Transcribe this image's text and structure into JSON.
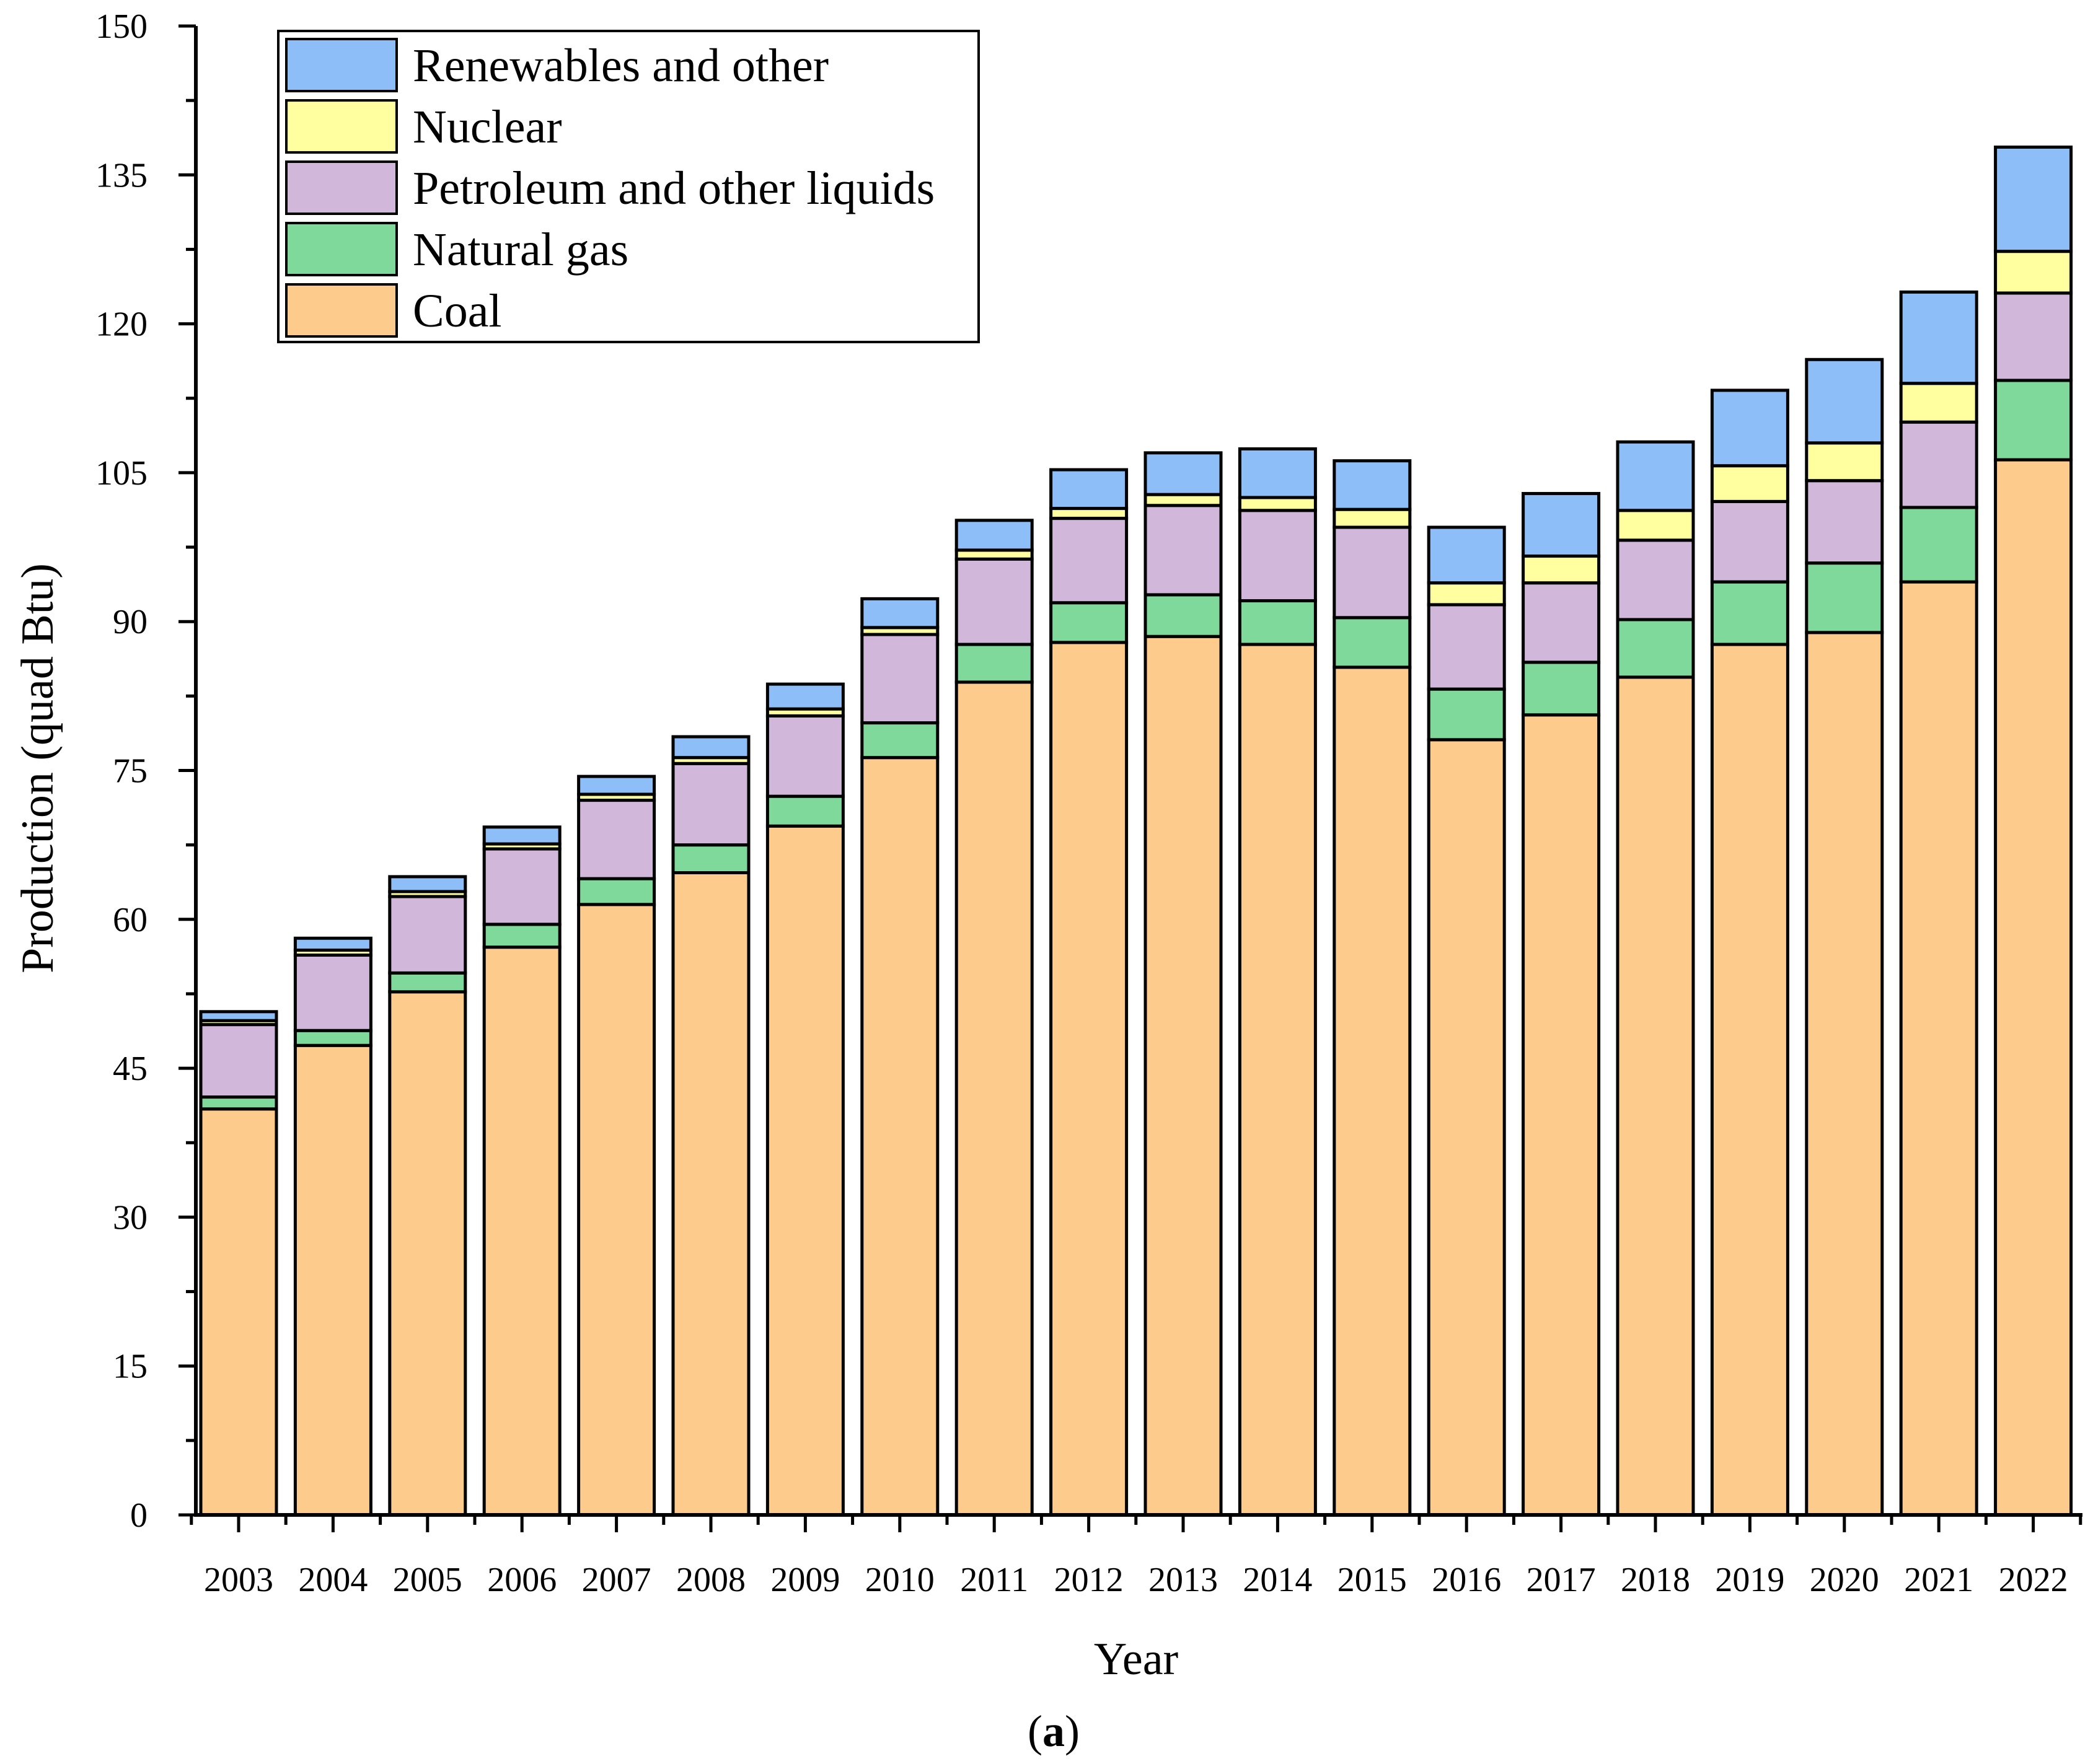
{
  "chart_data": {
    "type": "bar",
    "stacked": true,
    "title": "",
    "xlabel": "Year",
    "ylabel": "Production (quad Btu)",
    "ylim": [
      0,
      150
    ],
    "yticks": [
      0,
      15,
      30,
      45,
      60,
      75,
      90,
      105,
      120,
      135,
      150
    ],
    "grid": false,
    "legend_position": "top-left",
    "categories": [
      "2003",
      "2004",
      "2005",
      "2006",
      "2007",
      "2008",
      "2009",
      "2010",
      "2011",
      "2012",
      "2013",
      "2014",
      "2015",
      "2016",
      "2017",
      "2018",
      "2019",
      "2020",
      "2021",
      "2022"
    ],
    "series": [
      {
        "name": "Coal",
        "color": "#FDCC8D",
        "values": [
          40.9,
          47.3,
          52.7,
          57.2,
          61.5,
          64.7,
          69.4,
          76.3,
          83.9,
          87.9,
          88.5,
          87.7,
          85.4,
          78.1,
          80.6,
          84.4,
          87.7,
          88.9,
          94.0,
          106.3
        ]
      },
      {
        "name": "Natural gas",
        "color": "#7FD99A",
        "values": [
          1.2,
          1.5,
          1.9,
          2.3,
          2.6,
          2.8,
          3.0,
          3.5,
          3.8,
          4.0,
          4.2,
          4.4,
          5.0,
          5.1,
          5.3,
          5.8,
          6.3,
          7.0,
          7.5,
          8.0
        ]
      },
      {
        "name": "Petroleum and other liquids",
        "color": "#D1B8DA",
        "values": [
          7.3,
          7.6,
          7.7,
          7.6,
          7.9,
          8.2,
          8.1,
          8.9,
          8.6,
          8.5,
          9.0,
          9.1,
          9.1,
          8.5,
          8.0,
          8.0,
          8.1,
          8.3,
          8.6,
          8.8
        ]
      },
      {
        "name": "Nuclear",
        "color": "#FFFFA0",
        "values": [
          0.4,
          0.5,
          0.5,
          0.5,
          0.6,
          0.6,
          0.7,
          0.7,
          0.9,
          1.0,
          1.1,
          1.3,
          1.8,
          2.2,
          2.7,
          3.0,
          3.6,
          3.8,
          3.9,
          4.2
        ]
      },
      {
        "name": "Renewables and other",
        "color": "#8DBEF7",
        "values": [
          0.9,
          1.2,
          1.5,
          1.7,
          1.8,
          2.1,
          2.5,
          2.9,
          3.0,
          3.9,
          4.2,
          4.9,
          4.9,
          5.6,
          6.3,
          6.9,
          7.6,
          8.4,
          9.2,
          10.5
        ]
      }
    ],
    "legend_order": [
      "Renewables and other",
      "Nuclear",
      "Petroleum and other liquids",
      "Natural gas",
      "Coal"
    ]
  },
  "caption": {
    "open": "(",
    "letter": "a",
    "close": ")"
  }
}
